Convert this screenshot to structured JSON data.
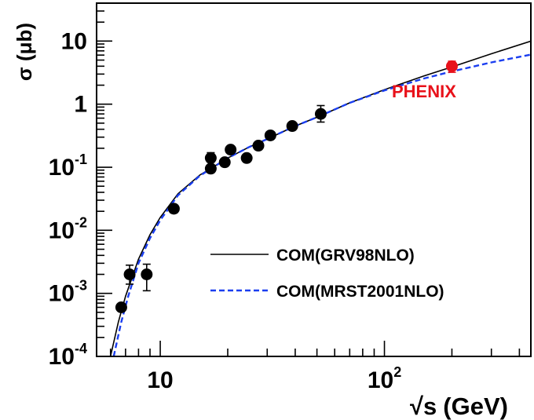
{
  "chart_data": {
    "type": "scatter",
    "title": "",
    "xlabel": "√s (GeV)",
    "xlabel_parts": {
      "radical": "√",
      "base": "s",
      "unit": "(GeV)"
    },
    "ylabel": "σ (μb)",
    "xscale": "log",
    "yscale": "log",
    "xlim": [
      5.2,
      450
    ],
    "ylim": [
      0.0001,
      40
    ],
    "grid": false,
    "legend_position": "bottom-right",
    "x_ticks": [
      {
        "value": 10,
        "base": "10",
        "exp": ""
      },
      {
        "value": 100,
        "base": "10",
        "exp": "2"
      }
    ],
    "y_ticks": [
      {
        "value": 10,
        "base": "10",
        "exp": ""
      },
      {
        "value": 1,
        "base": "1",
        "exp": ""
      },
      {
        "value": 0.1,
        "base": "10",
        "exp": "-1"
      },
      {
        "value": 0.01,
        "base": "10",
        "exp": "-2"
      },
      {
        "value": 0.001,
        "base": "10",
        "exp": "-3"
      },
      {
        "value": 0.0001,
        "base": "10",
        "exp": "-4"
      }
    ],
    "series": [
      {
        "name": "COM(GRV98NLO)",
        "kind": "line",
        "style": "solid",
        "color": "#000000",
        "points": [
          [
            6.0,
            0.0001
          ],
          [
            6.5,
            0.00035
          ],
          [
            7.0,
            0.0009
          ],
          [
            8.0,
            0.0035
          ],
          [
            9.0,
            0.0085
          ],
          [
            10.0,
            0.016
          ],
          [
            12.0,
            0.038
          ],
          [
            15.0,
            0.075
          ],
          [
            20.0,
            0.14
          ],
          [
            25.0,
            0.21
          ],
          [
            30.0,
            0.28
          ],
          [
            40.0,
            0.45
          ],
          [
            50.0,
            0.62
          ],
          [
            70.0,
            1.05
          ],
          [
            100.0,
            1.7
          ],
          [
            150.0,
            2.8
          ],
          [
            200.0,
            3.9
          ],
          [
            300.0,
            6.3
          ],
          [
            450.0,
            10.0
          ]
        ]
      },
      {
        "name": "COM(MRST2001NLO)",
        "kind": "line",
        "style": "dashed",
        "color": "#1a3ef0",
        "points": [
          [
            6.2,
            0.0001
          ],
          [
            6.7,
            0.00035
          ],
          [
            7.2,
            0.0009
          ],
          [
            8.0,
            0.003
          ],
          [
            9.0,
            0.0075
          ],
          [
            10.0,
            0.0145
          ],
          [
            12.0,
            0.036
          ],
          [
            15.0,
            0.073
          ],
          [
            20.0,
            0.14
          ],
          [
            25.0,
            0.21
          ],
          [
            30.0,
            0.28
          ],
          [
            40.0,
            0.45
          ],
          [
            50.0,
            0.62
          ],
          [
            70.0,
            1.05
          ],
          [
            100.0,
            1.65
          ],
          [
            150.0,
            2.55
          ],
          [
            200.0,
            3.3
          ],
          [
            300.0,
            4.6
          ],
          [
            450.0,
            6.1
          ]
        ]
      },
      {
        "kind": "points",
        "color": "#000000",
        "points": [
          {
            "x": 6.7,
            "y": 0.0006,
            "ylo": 0.0006,
            "yhi": 0.0006
          },
          {
            "x": 7.3,
            "y": 0.002,
            "ylo": 0.0014,
            "yhi": 0.0028
          },
          {
            "x": 8.7,
            "y": 0.002,
            "ylo": 0.0011,
            "yhi": 0.0029
          },
          {
            "x": 11.5,
            "y": 0.022,
            "ylo": 0.019,
            "yhi": 0.025
          },
          {
            "x": 16.8,
            "y": 0.14,
            "ylo": 0.12,
            "yhi": 0.17
          },
          {
            "x": 16.8,
            "y": 0.095,
            "ylo": 0.085,
            "yhi": 0.105
          },
          {
            "x": 19.4,
            "y": 0.12,
            "ylo": 0.11,
            "yhi": 0.13
          },
          {
            "x": 20.6,
            "y": 0.19,
            "ylo": 0.17,
            "yhi": 0.21
          },
          {
            "x": 24.3,
            "y": 0.14,
            "ylo": 0.13,
            "yhi": 0.15
          },
          {
            "x": 27.4,
            "y": 0.22,
            "ylo": 0.2,
            "yhi": 0.24
          },
          {
            "x": 31.0,
            "y": 0.32,
            "ylo": 0.29,
            "yhi": 0.35
          },
          {
            "x": 38.8,
            "y": 0.45,
            "ylo": 0.41,
            "yhi": 0.5
          },
          {
            "x": 52.0,
            "y": 0.7,
            "ylo": 0.52,
            "yhi": 0.95
          }
        ]
      },
      {
        "name": "PHENIX",
        "kind": "points",
        "color": "#e8111a",
        "points": [
          {
            "x": 200.0,
            "y": 4.0,
            "ylo": 3.2,
            "yhi": 4.8
          }
        ]
      }
    ],
    "annotations": [
      {
        "text": "PHENIX",
        "color": "#e8111a"
      }
    ]
  }
}
